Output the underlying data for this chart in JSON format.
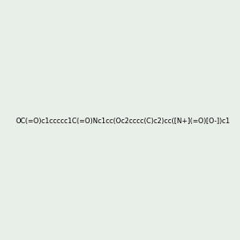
{
  "smiles": "OC(=O)c1ccccc1C(=O)Nc1cc(O c2cccc(C)c2)cc([N+](=O)[O-])c1",
  "smiles_clean": "OC(=O)c1ccccc1C(=O)Nc1cc(Oc2cccc(C)c2)cc([N+](=O)[O-])c1",
  "title": "",
  "bg_color": "#e8eee8",
  "bond_color": "#2d7d6d",
  "atom_colors": {
    "O": "#ff0000",
    "N": "#0000ff",
    "C": "#2d7d6d",
    "H": "#2d7d6d"
  },
  "img_size": [
    300,
    300
  ]
}
